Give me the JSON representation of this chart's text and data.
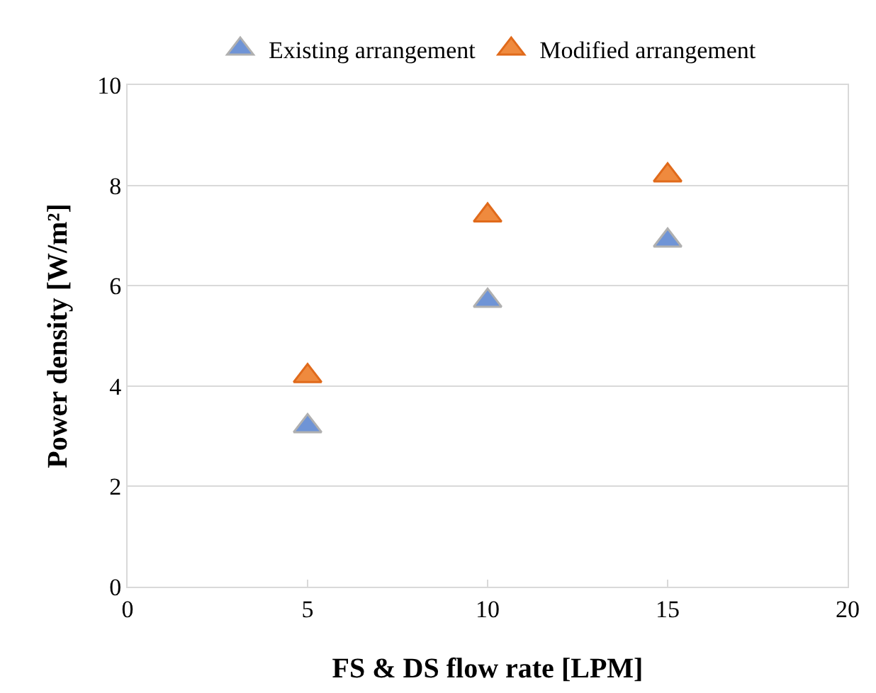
{
  "chart_data": {
    "type": "scatter",
    "xlabel": "FS & DS flow rate [LPM]",
    "ylabel": "Power density [W/m²]",
    "x": [
      5,
      10,
      15
    ],
    "series": [
      {
        "name": "Existing arrangement",
        "color": "#6f94d6",
        "values": [
          3.2,
          5.7,
          6.9
        ]
      },
      {
        "name": "Modified arrangement",
        "color": "#ef8a3e",
        "values": [
          4.2,
          7.4,
          8.2
        ]
      }
    ],
    "xlim": [
      0,
      20
    ],
    "xticks": [
      0,
      5,
      10,
      15,
      20
    ],
    "ylim": [
      0,
      10
    ],
    "yticks": [
      0,
      2,
      4,
      6,
      8,
      10
    ],
    "grid": "y",
    "legend": "top",
    "marker": "triangle"
  }
}
